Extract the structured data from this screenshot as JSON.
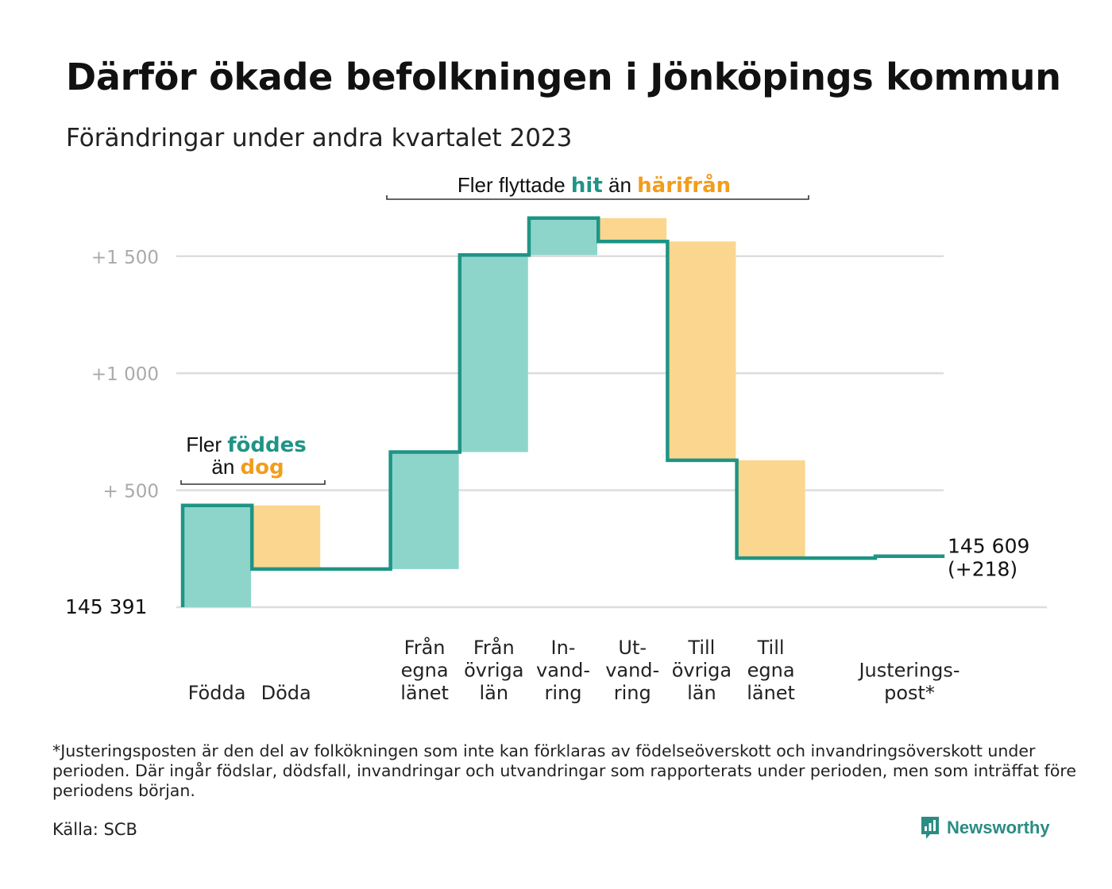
{
  "title": "Därför ökade befolkningen i Jönköpings kommun",
  "subtitle": "Förändringar under andra kvartalet 2023",
  "chart_data": {
    "type": "waterfall",
    "start": 145391,
    "start_label": "145 391",
    "end": 145609,
    "end_label": "145 609",
    "change_label": "(+218)",
    "y_ticks": [
      {
        "value": 500,
        "label": "+ 500"
      },
      {
        "value": 1000,
        "label": "+1 000"
      },
      {
        "value": 1500,
        "label": "+1 500"
      }
    ],
    "ylim": [
      0,
      1650
    ],
    "grid": true,
    "steps": [
      {
        "category": "Födda",
        "label": [
          "Födda"
        ],
        "value": 435,
        "kind": "in"
      },
      {
        "category": "Döda",
        "label": [
          "Döda"
        ],
        "value": -272,
        "kind": "out"
      },
      {
        "category": "Från egna länet",
        "label": [
          "Från",
          "egna",
          "länet"
        ],
        "value": 500,
        "kind": "in"
      },
      {
        "category": "Från övriga län",
        "label": [
          "Från",
          "övriga",
          "län"
        ],
        "value": 842,
        "kind": "in"
      },
      {
        "category": "Invandring",
        "label": [
          "In-",
          "vand-",
          "ring"
        ],
        "value": 158,
        "kind": "in"
      },
      {
        "category": "Utvandring",
        "label": [
          "Ut-",
          "vand-",
          "ring"
        ],
        "value": -100,
        "kind": "out"
      },
      {
        "category": "Till övriga län",
        "label": [
          "Till",
          "övriga",
          "län"
        ],
        "value": -935,
        "kind": "out"
      },
      {
        "category": "Till egna länet",
        "label": [
          "Till",
          "egna",
          "länet"
        ],
        "value": -418,
        "kind": "out"
      },
      {
        "category": "Justeringspost*",
        "label": [
          "Justerings-",
          "post*"
        ],
        "value": 8,
        "kind": "in"
      }
    ],
    "annotations": [
      {
        "id": "births",
        "parts": [
          {
            "text": "Fler",
            "style": "plain"
          },
          {
            "text": "föddes",
            "style": "in"
          },
          {
            "text": "än",
            "style": "plain"
          },
          {
            "text": "dog",
            "style": "out"
          }
        ],
        "span": [
          "Födda",
          "Döda"
        ]
      },
      {
        "id": "migration",
        "parts": [
          {
            "text": "Fler flyttade",
            "style": "plain"
          },
          {
            "text": "hit",
            "style": "in"
          },
          {
            "text": "än",
            "style": "plain"
          },
          {
            "text": "härifrån",
            "style": "out"
          }
        ],
        "span": [
          "Från egna länet",
          "Till egna länet"
        ]
      }
    ],
    "colors": {
      "in": "#8dd5cb",
      "out": "#fbd68e",
      "line": "#1f9485",
      "in_text": "#1f9485",
      "out_text": "#f29d1c",
      "grid": "#dddddd",
      "tick_text": "#aaaaaa"
    }
  },
  "footnote": "*Justeringsposten är den del av folkökningen som inte kan förklaras av födelseöverskott och invandringsöverskott under perioden. Där ingår födslar, dödsfall, invandringar och utvandringar som rapporterats under perioden, men som inträffat före periodens början.",
  "source": "Källa: SCB",
  "brand": {
    "name": "Newsworthy",
    "icon": "newsworthy-logo-icon"
  }
}
